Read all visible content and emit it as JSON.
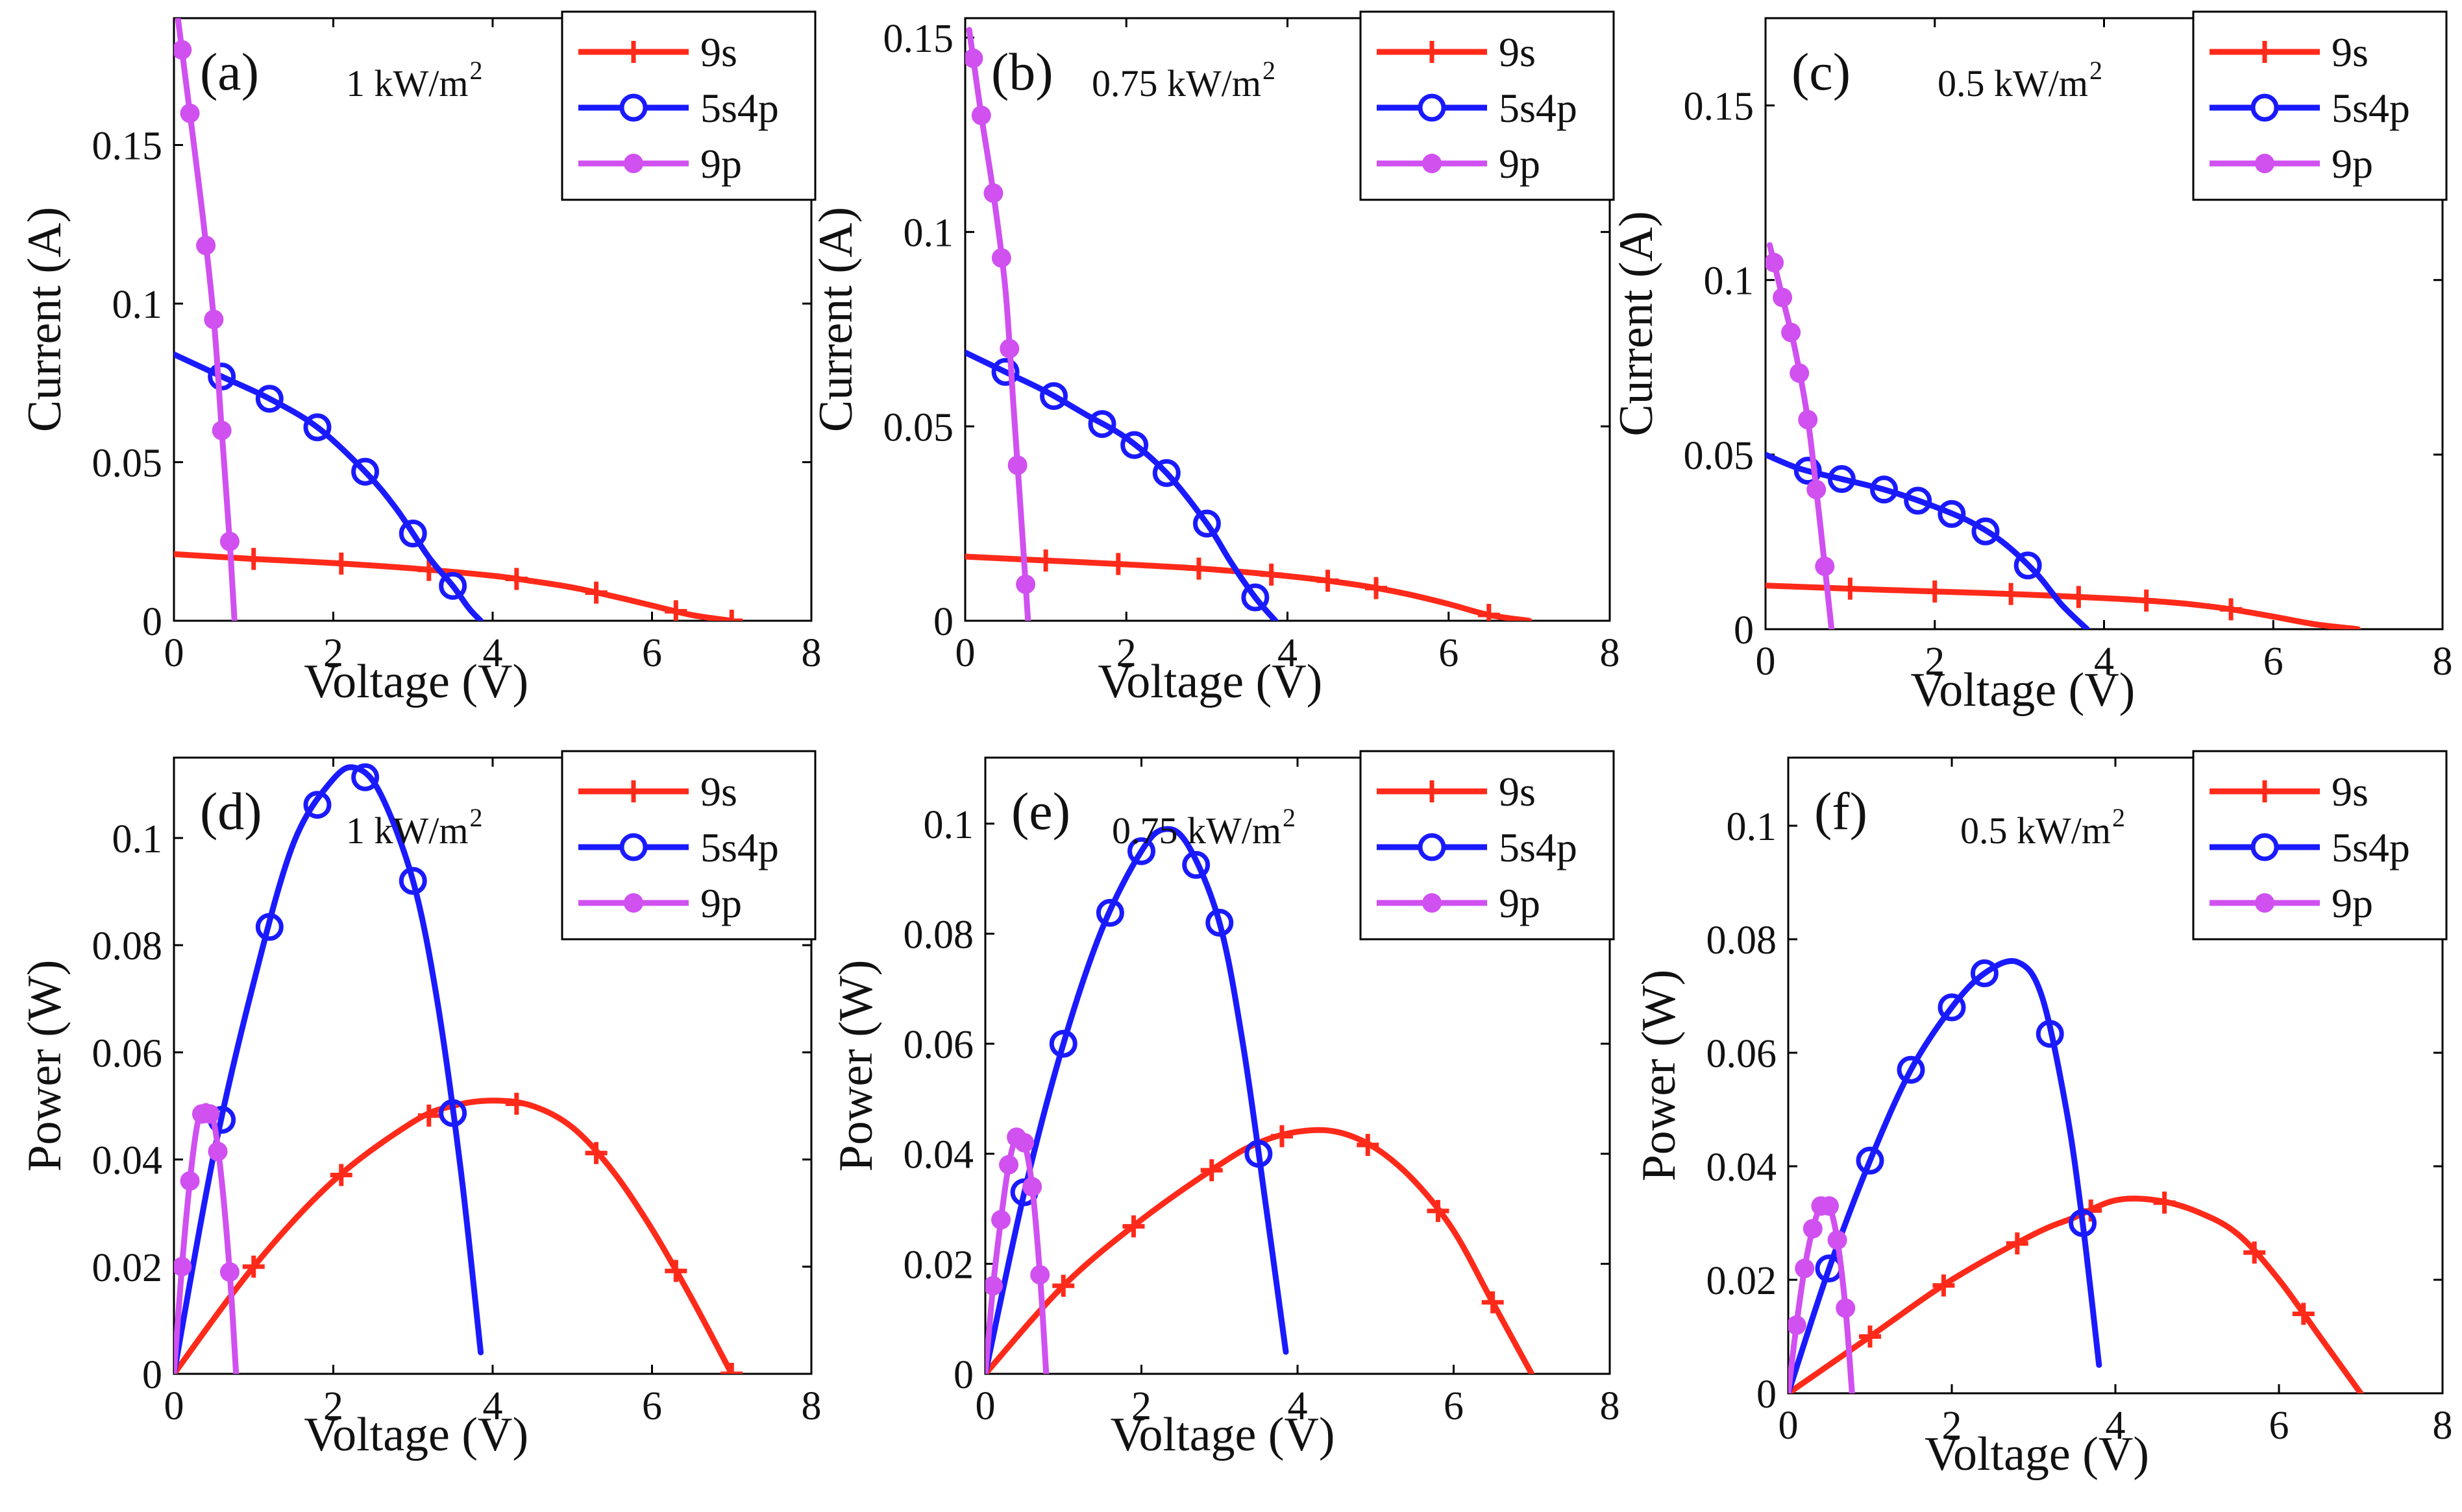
{
  "figure": {
    "colors": {
      "9s": "#ff2a1a",
      "5s4p": "#1a1aff",
      "9p": "#d050f0"
    },
    "series_names": [
      "9s",
      "5s4p",
      "9p"
    ]
  },
  "chart_data": [
    {
      "id": "a",
      "type": "line",
      "panel_label": "(a)",
      "annotation": {
        "text": "1 kW/m",
        "sup": "2"
      },
      "xlabel": "Voltage (V)",
      "ylabel": "Current (A)",
      "xlim": [
        0,
        8
      ],
      "ylim": [
        0,
        0.19
      ],
      "xticks": [
        0,
        2,
        4,
        6,
        8
      ],
      "xtick_labels": [
        "0",
        "2",
        "4",
        "6",
        "8"
      ],
      "yticks": [
        0,
        0.05,
        0.1,
        0.15
      ],
      "ytick_labels": [
        "0",
        "0.05",
        "0.1",
        "0.15"
      ],
      "legend": [
        "9s",
        "5s4p",
        "9p"
      ],
      "series": [
        {
          "name": "9s",
          "marker": "plus",
          "x": [
            0,
            1,
            2,
            3,
            4,
            4.5,
            5,
            5.5,
            6,
            6.5,
            7
          ],
          "y": [
            0.021,
            0.0195,
            0.0182,
            0.0165,
            0.0142,
            0.0125,
            0.0105,
            0.0078,
            0.0048,
            0.0018,
            0
          ],
          "marker_x": [
            1.0,
            2.1,
            3.2,
            4.3,
            5.3,
            6.3,
            7.0
          ]
        },
        {
          "name": "5s4p",
          "marker": "circle",
          "x": [
            0,
            0.6,
            1.2,
            1.8,
            2.4,
            2.8,
            3.2,
            3.5,
            3.7,
            3.85
          ],
          "y": [
            0.084,
            0.077,
            0.07,
            0.061,
            0.047,
            0.035,
            0.02,
            0.011,
            0.004,
            0
          ],
          "marker_x": [
            0.6,
            1.2,
            1.8,
            2.4,
            3.0,
            3.5
          ]
        },
        {
          "name": "9p",
          "marker": "dot",
          "x": [
            0.05,
            0.2,
            0.35,
            0.5,
            0.6,
            0.7,
            0.76
          ],
          "y": [
            0.19,
            0.16,
            0.13,
            0.095,
            0.06,
            0.025,
            0
          ],
          "marker_x": [
            0.1,
            0.2,
            0.4,
            0.5,
            0.6,
            0.7
          ]
        }
      ]
    },
    {
      "id": "b",
      "type": "line",
      "panel_label": "(b)",
      "annotation": {
        "text": "0.75 kW/m",
        "sup": "2"
      },
      "xlabel": "Voltage (V)",
      "ylabel": "Current (A)",
      "xlim": [
        0,
        8
      ],
      "ylim": [
        0,
        0.155
      ],
      "xticks": [
        0,
        2,
        4,
        6,
        8
      ],
      "xtick_labels": [
        "0",
        "2",
        "4",
        "6",
        "8"
      ],
      "yticks": [
        0,
        0.05,
        0.1,
        0.15
      ],
      "ytick_labels": [
        "0",
        "0.05",
        "0.1",
        "0.15"
      ],
      "legend": [
        "9s",
        "5s4p",
        "9p"
      ],
      "series": [
        {
          "name": "9s",
          "marker": "plus",
          "x": [
            0,
            1,
            2,
            3,
            4,
            4.5,
            5,
            5.5,
            6,
            6.5,
            7
          ],
          "y": [
            0.0165,
            0.0155,
            0.0145,
            0.0133,
            0.0115,
            0.0103,
            0.0088,
            0.0068,
            0.0043,
            0.0015,
            0
          ],
          "marker_x": [
            1.0,
            1.9,
            2.9,
            3.8,
            4.5,
            5.1,
            6.5
          ]
        },
        {
          "name": "5s4p",
          "marker": "circle",
          "x": [
            0,
            0.5,
            1,
            1.5,
            2,
            2.5,
            3,
            3.3,
            3.6,
            3.85
          ],
          "y": [
            0.069,
            0.064,
            0.059,
            0.053,
            0.047,
            0.038,
            0.025,
            0.015,
            0.006,
            0
          ],
          "marker_x": [
            0.5,
            1.1,
            1.7,
            2.1,
            2.5,
            3.0,
            3.6
          ]
        },
        {
          "name": "9p",
          "marker": "dot",
          "x": [
            0.05,
            0.2,
            0.35,
            0.5,
            0.6,
            0.7,
            0.78
          ],
          "y": [
            0.152,
            0.13,
            0.11,
            0.085,
            0.055,
            0.025,
            0
          ],
          "marker_x": [
            0.1,
            0.2,
            0.35,
            0.45,
            0.55,
            0.65,
            0.75
          ]
        }
      ]
    },
    {
      "id": "c",
      "type": "line",
      "panel_label": "(c)",
      "annotation": {
        "text": "0.5 kW/m",
        "sup": "2"
      },
      "xlabel": "Voltage (V)",
      "ylabel": "Current (A)",
      "xlim": [
        0,
        8
      ],
      "ylim": [
        0,
        0.175
      ],
      "xticks": [
        0,
        2,
        4,
        6,
        8
      ],
      "xtick_labels": [
        "0",
        "2",
        "4",
        "6",
        "8"
      ],
      "yticks": [
        0,
        0.05,
        0.1,
        0.15
      ],
      "ytick_labels": [
        "0",
        "0.05",
        "0.1",
        "0.15"
      ],
      "legend": [
        "9s",
        "5s4p",
        "9p"
      ],
      "series": [
        {
          "name": "9s",
          "marker": "plus",
          "x": [
            0,
            1,
            2,
            3,
            4,
            4.5,
            5,
            5.5,
            6,
            6.5,
            7
          ],
          "y": [
            0.0125,
            0.0116,
            0.0108,
            0.01,
            0.0089,
            0.0082,
            0.0072,
            0.0057,
            0.0036,
            0.0014,
            0
          ],
          "marker_x": [
            1.0,
            2.0,
            2.9,
            3.7,
            4.5,
            5.5
          ]
        },
        {
          "name": "5s4p",
          "marker": "circle",
          "x": [
            0,
            0.4,
            0.9,
            1.4,
            1.9,
            2.4,
            2.8,
            3.2,
            3.5,
            3.8
          ],
          "y": [
            0.05,
            0.046,
            0.043,
            0.04,
            0.036,
            0.031,
            0.025,
            0.016,
            0.007,
            0
          ],
          "marker_x": [
            0.5,
            0.9,
            1.4,
            1.8,
            2.2,
            2.6,
            3.1
          ]
        },
        {
          "name": "9p",
          "marker": "dot",
          "x": [
            0.05,
            0.2,
            0.35,
            0.5,
            0.6,
            0.7,
            0.78
          ],
          "y": [
            0.11,
            0.095,
            0.08,
            0.06,
            0.04,
            0.018,
            0
          ],
          "marker_x": [
            0.1,
            0.2,
            0.3,
            0.4,
            0.5,
            0.6,
            0.7
          ]
        }
      ]
    },
    {
      "id": "d",
      "type": "line",
      "panel_label": "(d)",
      "annotation": {
        "text": "1 kW/m",
        "sup": "2"
      },
      "xlabel": "Voltage (V)",
      "ylabel": "Power (W)",
      "xlim": [
        0,
        8
      ],
      "ylim": [
        0,
        0.115
      ],
      "xticks": [
        0,
        2,
        4,
        6,
        8
      ],
      "xtick_labels": [
        "0",
        "2",
        "4",
        "6",
        "8"
      ],
      "yticks": [
        0,
        0.02,
        0.04,
        0.06,
        0.08,
        0.1
      ],
      "ytick_labels": [
        "0",
        "0.02",
        "0.04",
        "0.06",
        "0.08",
        "0.1"
      ],
      "legend": [
        "9s",
        "5s4p",
        "9p"
      ],
      "series": [
        {
          "name": "9s",
          "marker": "plus",
          "x": [
            0,
            1,
            2,
            3,
            3.5,
            4,
            4.5,
            5,
            5.5,
            6,
            6.5,
            7
          ],
          "y": [
            0,
            0.02,
            0.036,
            0.047,
            0.05,
            0.051,
            0.05,
            0.046,
            0.038,
            0.027,
            0.014,
            0
          ],
          "marker_x": [
            1.0,
            2.1,
            3.2,
            4.3,
            5.3,
            6.3,
            7.0
          ]
        },
        {
          "name": "5s4p",
          "marker": "circle",
          "x": [
            0,
            0.5,
            1,
            1.5,
            2,
            2.3,
            2.6,
            3,
            3.3,
            3.6,
            3.85
          ],
          "y": [
            0,
            0.041,
            0.073,
            0.099,
            0.111,
            0.113,
            0.108,
            0.092,
            0.07,
            0.038,
            0.004
          ],
          "marker_x": [
            0.6,
            1.2,
            1.8,
            2.4,
            3.0,
            3.5
          ]
        },
        {
          "name": "9p",
          "marker": "dot",
          "x": [
            0,
            0.1,
            0.2,
            0.3,
            0.4,
            0.5,
            0.6,
            0.7,
            0.78
          ],
          "y": [
            0,
            0.02,
            0.036,
            0.047,
            0.05,
            0.047,
            0.036,
            0.019,
            0
          ],
          "marker_x": [
            0.1,
            0.2,
            0.35,
            0.45,
            0.55,
            0.7
          ]
        }
      ]
    },
    {
      "id": "e",
      "type": "line",
      "panel_label": "(e)",
      "annotation": {
        "text": "0.75 kW/m",
        "sup": "2"
      },
      "xlabel": "Voltage (V)",
      "ylabel": "Power (W)",
      "xlim": [
        0,
        8
      ],
      "ylim": [
        0,
        0.112
      ],
      "xticks": [
        0,
        2,
        4,
        6,
        8
      ],
      "xtick_labels": [
        "0",
        "2",
        "4",
        "6",
        "8"
      ],
      "yticks": [
        0,
        0.02,
        0.04,
        0.06,
        0.08,
        0.1
      ],
      "ytick_labels": [
        "0",
        "0.02",
        "0.04",
        "0.06",
        "0.08",
        "0.1"
      ],
      "legend": [
        "9s",
        "5s4p",
        "9p"
      ],
      "series": [
        {
          "name": "9s",
          "marker": "plus",
          "x": [
            0,
            1,
            2,
            3,
            3.5,
            4,
            4.5,
            5,
            5.5,
            6,
            6.5,
            7
          ],
          "y": [
            0,
            0.016,
            0.028,
            0.038,
            0.042,
            0.044,
            0.044,
            0.041,
            0.035,
            0.026,
            0.013,
            0
          ],
          "marker_x": [
            1.0,
            1.9,
            2.9,
            3.8,
            4.9,
            5.8,
            6.5
          ]
        },
        {
          "name": "5s4p",
          "marker": "circle",
          "x": [
            0,
            0.5,
            1,
            1.5,
            2,
            2.3,
            2.6,
            3,
            3.3,
            3.6,
            3.85
          ],
          "y": [
            0,
            0.033,
            0.06,
            0.081,
            0.095,
            0.099,
            0.096,
            0.082,
            0.06,
            0.03,
            0.004
          ],
          "marker_x": [
            0.5,
            1.0,
            1.6,
            2.0,
            2.7,
            3.0,
            3.5
          ]
        },
        {
          "name": "9p",
          "marker": "dot",
          "x": [
            0,
            0.1,
            0.2,
            0.3,
            0.4,
            0.5,
            0.6,
            0.7,
            0.78
          ],
          "y": [
            0,
            0.016,
            0.028,
            0.038,
            0.043,
            0.042,
            0.034,
            0.018,
            0
          ],
          "marker_x": [
            0.1,
            0.2,
            0.3,
            0.4,
            0.5,
            0.6,
            0.7
          ]
        }
      ]
    },
    {
      "id": "f",
      "type": "line",
      "panel_label": "(f)",
      "annotation": {
        "text": "0.5 kW/m",
        "sup": "2"
      },
      "xlabel": "Voltage (V)",
      "ylabel": "Power (W)",
      "xlim": [
        0,
        8
      ],
      "ylim": [
        0,
        0.112
      ],
      "xticks": [
        0,
        2,
        4,
        6,
        8
      ],
      "xtick_labels": [
        "0",
        "2",
        "4",
        "6",
        "8"
      ],
      "yticks": [
        0,
        0.02,
        0.04,
        0.06,
        0.08,
        0.1
      ],
      "ytick_labels": [
        "0",
        "0.02",
        "0.04",
        "0.06",
        "0.08",
        "0.1"
      ],
      "legend": [
        "9s",
        "5s4p",
        "9p"
      ],
      "series": [
        {
          "name": "9s",
          "marker": "plus",
          "x": [
            0,
            1,
            2,
            3,
            3.5,
            4,
            4.5,
            5,
            5.5,
            6,
            6.5,
            7
          ],
          "y": [
            0,
            0.01,
            0.02,
            0.028,
            0.031,
            0.034,
            0.034,
            0.032,
            0.028,
            0.02,
            0.01,
            0
          ],
          "marker_x": [
            1.0,
            1.9,
            2.8,
            3.7,
            4.6,
            5.7,
            6.3
          ]
        },
        {
          "name": "5s4p",
          "marker": "circle",
          "x": [
            0,
            0.5,
            1,
            1.5,
            2,
            2.4,
            2.8,
            3.1,
            3.4,
            3.6,
            3.8
          ],
          "y": [
            0,
            0.022,
            0.041,
            0.057,
            0.068,
            0.074,
            0.076,
            0.07,
            0.05,
            0.03,
            0.005
          ],
          "marker_x": [
            0.5,
            1.0,
            1.5,
            2.0,
            2.4,
            3.2,
            3.6
          ]
        },
        {
          "name": "9p",
          "marker": "dot",
          "x": [
            0,
            0.1,
            0.2,
            0.3,
            0.4,
            0.5,
            0.6,
            0.7,
            0.78
          ],
          "y": [
            0,
            0.012,
            0.022,
            0.029,
            0.033,
            0.033,
            0.027,
            0.015,
            0
          ],
          "marker_x": [
            0.1,
            0.2,
            0.3,
            0.4,
            0.5,
            0.6,
            0.7
          ]
        }
      ]
    }
  ]
}
